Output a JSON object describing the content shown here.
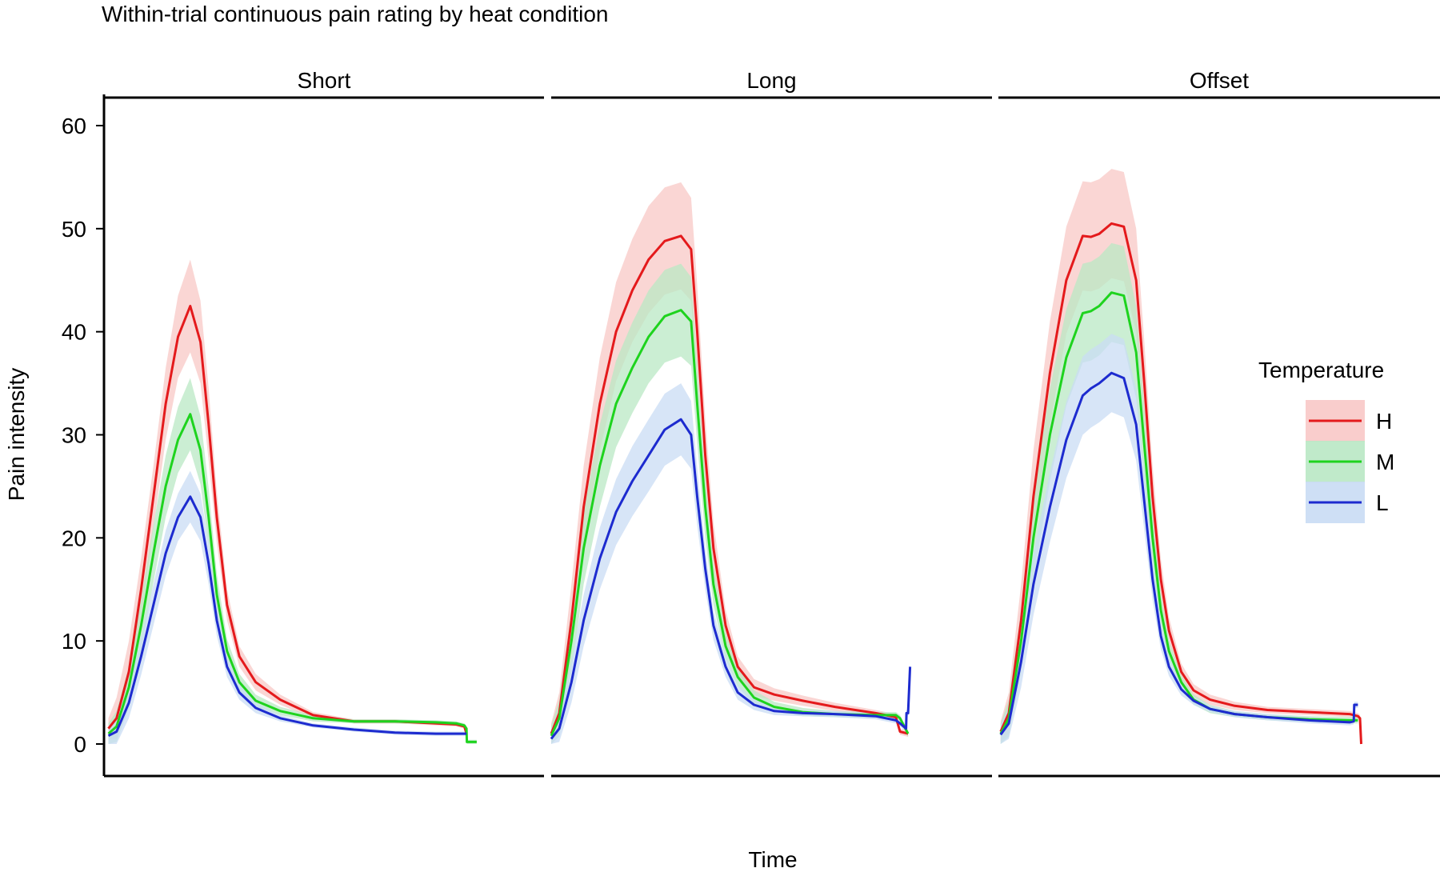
{
  "chart_data": {
    "type": "line",
    "title": "Within-trial continuous pain rating by heat condition",
    "xlabel": "Time",
    "ylabel": "Pain intensity",
    "ylim": [
      0,
      63
    ],
    "xlim": [
      0,
      1
    ],
    "yticks": [
      0,
      10,
      20,
      30,
      40,
      50,
      60
    ],
    "grid": false,
    "legend": {
      "title": "Temperature",
      "position": "right",
      "entries": [
        {
          "key": "H",
          "label": "H",
          "line_color": "#e41a1c",
          "band_color": "#f8c8c6"
        },
        {
          "key": "M",
          "label": "M",
          "line_color": "#1ed31e",
          "band_color": "#b9e8c4"
        },
        {
          "key": "L",
          "label": "L",
          "line_color": "#1d2bcf",
          "band_color": "#c9dcf4"
        }
      ]
    },
    "facets": [
      {
        "label": "Short",
        "series": [
          {
            "name": "H",
            "x": [
              0,
              0.02,
              0.05,
              0.08,
              0.11,
              0.14,
              0.17,
              0.2,
              0.225,
              0.245,
              0.265,
              0.29,
              0.32,
              0.36,
              0.42,
              0.5,
              0.6,
              0.7,
              0.8,
              0.85,
              0.87,
              0.875
            ],
            "y": [
              1.5,
              2.5,
              7,
              15,
              24,
              33,
              39.5,
              42.5,
              39,
              31,
              22,
              13.5,
              8.5,
              6,
              4.3,
              2.8,
              2.2,
              2.2,
              2.0,
              1.9,
              1.7,
              1.0
            ],
            "band": [
              1,
              2,
              3,
              3,
              3,
              3.5,
              4,
              4.5,
              4,
              3.5,
              2.5,
              1.5,
              1,
              0.8,
              0.5,
              0.3,
              0.2,
              0.2,
              0.2,
              0.2,
              0.2,
              0.2
            ]
          },
          {
            "name": "M",
            "x": [
              0,
              0.02,
              0.05,
              0.08,
              0.11,
              0.14,
              0.17,
              0.2,
              0.225,
              0.245,
              0.265,
              0.29,
              0.32,
              0.36,
              0.42,
              0.5,
              0.6,
              0.7,
              0.8,
              0.85,
              0.87,
              0.875,
              0.876,
              0.9
            ],
            "y": [
              1.0,
              1.7,
              5.5,
              11.5,
              18.5,
              25,
              29.5,
              32,
              28.5,
              22,
              14.5,
              9,
              6,
              4.2,
              3.2,
              2.5,
              2.2,
              2.2,
              2.1,
              2.0,
              1.8,
              1.5,
              0.2,
              0.2
            ],
            "band": [
              1,
              1.5,
              2,
              2.5,
              2.8,
              3,
              3.2,
              3.5,
              3.3,
              2.8,
              2,
              1.2,
              0.8,
              0.6,
              0.4,
              0.3,
              0.2,
              0.2,
              0.2,
              0.2,
              0.2,
              0.2,
              0.2,
              0.2
            ]
          },
          {
            "name": "L",
            "x": [
              0,
              0.02,
              0.05,
              0.08,
              0.11,
              0.14,
              0.17,
              0.2,
              0.225,
              0.245,
              0.265,
              0.29,
              0.32,
              0.36,
              0.42,
              0.5,
              0.6,
              0.7,
              0.8,
              0.85,
              0.87,
              0.875
            ],
            "y": [
              0.8,
              1.2,
              4,
              8.5,
              13.5,
              18.5,
              22,
              24,
              22,
              17.5,
              12,
              7.5,
              5,
              3.5,
              2.5,
              1.8,
              1.4,
              1.1,
              1.0,
              1.0,
              1.0,
              1.0
            ],
            "band": [
              1,
              1.2,
              1.5,
              1.8,
              2,
              2.2,
              2.3,
              2.5,
              2.3,
              2,
              1.5,
              1,
              0.7,
              0.5,
              0.3,
              0.2,
              0.2,
              0.2,
              0.2,
              0.2,
              0.2,
              0.2
            ]
          }
        ]
      },
      {
        "label": "Long",
        "series": [
          {
            "name": "H",
            "x": [
              0,
              0.02,
              0.05,
              0.08,
              0.12,
              0.16,
              0.2,
              0.24,
              0.28,
              0.32,
              0.345,
              0.36,
              0.38,
              0.4,
              0.43,
              0.46,
              0.5,
              0.55,
              0.62,
              0.7,
              0.8,
              0.85,
              0.86,
              0.88
            ],
            "y": [
              1.0,
              3,
              12,
              23,
              33,
              40,
              44,
              47,
              48.8,
              49.3,
              48,
              40,
              28,
              19,
              11.5,
              7.5,
              5.5,
              4.8,
              4.2,
              3.6,
              3.0,
              2.6,
              1.2,
              1.0
            ],
            "band": [
              1,
              2,
              3.5,
              4,
              4.5,
              4.8,
              5,
              5.2,
              5.2,
              5.2,
              5,
              4.5,
              3.5,
              2.5,
              1.5,
              1,
              0.8,
              0.6,
              0.5,
              0.4,
              0.3,
              0.3,
              0.3,
              0.3
            ]
          },
          {
            "name": "M",
            "x": [
              0,
              0.02,
              0.05,
              0.08,
              0.12,
              0.16,
              0.2,
              0.24,
              0.28,
              0.32,
              0.345,
              0.36,
              0.38,
              0.4,
              0.43,
              0.46,
              0.5,
              0.55,
              0.62,
              0.7,
              0.8,
              0.85,
              0.86,
              0.88
            ],
            "y": [
              0.8,
              2.5,
              10,
              19,
              27,
              33,
              36.5,
              39.5,
              41.5,
              42.1,
              41,
              33,
              23,
              15.5,
              9.5,
              6.5,
              4.5,
              3.6,
              3.1,
              2.9,
              2.8,
              2.8,
              2.5,
              1.0
            ],
            "band": [
              1,
              1.8,
              3,
              3.5,
              4,
              4.2,
              4.4,
              4.5,
              4.5,
              4.5,
              4.3,
              3.8,
              3,
              2,
              1.3,
              0.9,
              0.7,
              0.5,
              0.4,
              0.3,
              0.3,
              0.3,
              0.3,
              0.3
            ]
          },
          {
            "name": "L",
            "x": [
              0,
              0.02,
              0.05,
              0.08,
              0.12,
              0.16,
              0.2,
              0.24,
              0.28,
              0.32,
              0.345,
              0.36,
              0.38,
              0.4,
              0.43,
              0.46,
              0.5,
              0.55,
              0.62,
              0.7,
              0.8,
              0.85,
              0.86,
              0.875,
              0.876,
              0.88,
              0.885
            ],
            "y": [
              0.5,
              1.5,
              6,
              12,
              18,
              22.5,
              25.5,
              28,
              30.5,
              31.5,
              30,
              24,
              17,
              11.5,
              7.5,
              5,
              3.8,
              3.2,
              3.0,
              2.9,
              2.7,
              2.3,
              2.0,
              1.5,
              3.0,
              3.0,
              7.5
            ],
            "band": [
              1,
              1.3,
              2,
              2.5,
              3,
              3.2,
              3.4,
              3.5,
              3.5,
              3.5,
              3.3,
              2.8,
              2,
              1.4,
              1,
              0.7,
              0.5,
              0.4,
              0.3,
              0.3,
              0.3,
              0.3,
              0.3,
              0.3,
              0.3,
              0.3,
              0.3
            ]
          }
        ]
      },
      {
        "label": "Offset",
        "series": [
          {
            "name": "H",
            "x": [
              0,
              0.02,
              0.05,
              0.08,
              0.12,
              0.16,
              0.2,
              0.22,
              0.24,
              0.27,
              0.3,
              0.33,
              0.35,
              0.37,
              0.39,
              0.41,
              0.44,
              0.47,
              0.51,
              0.57,
              0.65,
              0.75,
              0.85,
              0.87,
              0.875,
              0.878
            ],
            "y": [
              1.2,
              3,
              12,
              24,
              36,
              45,
              49.3,
              49.2,
              49.5,
              50.5,
              50.2,
              45,
              35,
              24,
              16,
              11,
              7,
              5.2,
              4.3,
              3.7,
              3.3,
              3.1,
              2.9,
              2.7,
              2.5,
              0.0
            ],
            "band": [
              1,
              2,
              3.5,
              4.5,
              5,
              5.2,
              5.3,
              5.3,
              5.3,
              5.3,
              5.3,
              5,
              4,
              3,
              2,
              1.3,
              0.8,
              0.6,
              0.5,
              0.4,
              0.3,
              0.3,
              0.3,
              0.3,
              0.3,
              0.3
            ]
          },
          {
            "name": "M",
            "x": [
              0,
              0.02,
              0.05,
              0.08,
              0.12,
              0.16,
              0.2,
              0.22,
              0.24,
              0.27,
              0.3,
              0.33,
              0.35,
              0.37,
              0.39,
              0.41,
              0.44,
              0.47,
              0.51,
              0.57,
              0.65,
              0.75,
              0.85,
              0.87
            ],
            "y": [
              1.0,
              2.5,
              10,
              20,
              30,
              37.5,
              41.8,
              42,
              42.5,
              43.8,
              43.5,
              38,
              29,
              20,
              13,
              9,
              6,
              4.3,
              3.4,
              2.9,
              2.6,
              2.4,
              2.3,
              2.3
            ],
            "band": [
              1,
              1.8,
              3,
              4,
              4.5,
              4.7,
              4.8,
              4.8,
              4.8,
              4.8,
              4.8,
              4.5,
              3.6,
              2.6,
              1.7,
              1.1,
              0.7,
              0.5,
              0.4,
              0.3,
              0.3,
              0.3,
              0.3,
              0.3
            ]
          },
          {
            "name": "L",
            "x": [
              0,
              0.02,
              0.05,
              0.08,
              0.12,
              0.16,
              0.2,
              0.22,
              0.24,
              0.27,
              0.3,
              0.33,
              0.35,
              0.37,
              0.39,
              0.41,
              0.44,
              0.47,
              0.51,
              0.57,
              0.65,
              0.75,
              0.85,
              0.86,
              0.861,
              0.87
            ],
            "y": [
              0.9,
              2,
              8,
              15.5,
              23,
              29.5,
              33.8,
              34.5,
              35,
              36,
              35.5,
              31,
              23.5,
              16,
              10.5,
              7.5,
              5.3,
              4.2,
              3.4,
              2.9,
              2.6,
              2.3,
              2.1,
              2.2,
              3.8,
              3.8
            ],
            "band": [
              1,
              1.5,
              2.5,
              3,
              3.4,
              3.7,
              3.8,
              3.8,
              3.8,
              3.8,
              3.8,
              3.5,
              2.8,
              2,
              1.3,
              0.9,
              0.6,
              0.4,
              0.3,
              0.3,
              0.3,
              0.3,
              0.3,
              0.3,
              0.3,
              0.3
            ]
          }
        ]
      }
    ]
  }
}
